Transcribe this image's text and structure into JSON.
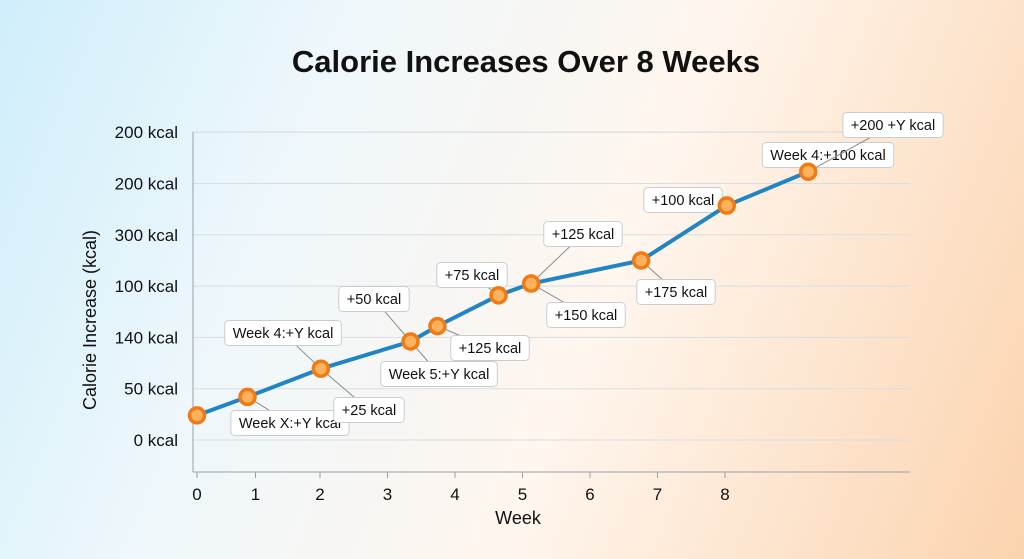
{
  "chart_data": {
    "type": "line",
    "title": "Calorie Increases Over 8 Weeks",
    "xlabel": "Week",
    "ylabel": "Calorie Increase  (kcal)",
    "xlim": [
      0,
      8.6
    ],
    "x_ticks": [
      "0",
      "1",
      "2",
      "3",
      "4",
      "5",
      "6",
      "7",
      "8"
    ],
    "y_tick_labels": [
      "0 kcal",
      "50 kcal",
      "140 kcal",
      "100 kcal",
      "300 kcal",
      "200 kcal",
      "200 kcal"
    ],
    "grid": true,
    "colors": {
      "line": "#2184c4",
      "marker_fill": "#ffb15c",
      "marker_edge": "#ef7a16"
    },
    "note": "y values expressed in units of the printed tick rows (0 = first tick '0 kcal', 6 = last tick '200 kcal'); tick labels as printed are non-monotonic",
    "series": [
      {
        "x": [
          0,
          0.62,
          1.52,
          2.62,
          2.95,
          3.7,
          4.1,
          5.45,
          6.5,
          7.5
        ],
        "y": [
          0.48,
          0.84,
          1.39,
          1.92,
          2.22,
          2.82,
          3.05,
          3.5,
          4.57,
          5.23
        ]
      }
    ],
    "annotations": [
      {
        "text": "Week X:+Y kcal"
      },
      {
        "text": "+25 kcal"
      },
      {
        "text": "Week 4:+Y kcal"
      },
      {
        "text": "Week 5:+Y kcal"
      },
      {
        "text": "+50 kcal"
      },
      {
        "text": "+125 kcal"
      },
      {
        "text": "+75 kcal"
      },
      {
        "text": "+150 kcal"
      },
      {
        "text": "+125 kcal"
      },
      {
        "text": "+175 kcal"
      },
      {
        "text": "+100 kcal"
      },
      {
        "text": "Week 4:+100 kcal"
      },
      {
        "text": "+200  +Y kcal"
      }
    ]
  }
}
